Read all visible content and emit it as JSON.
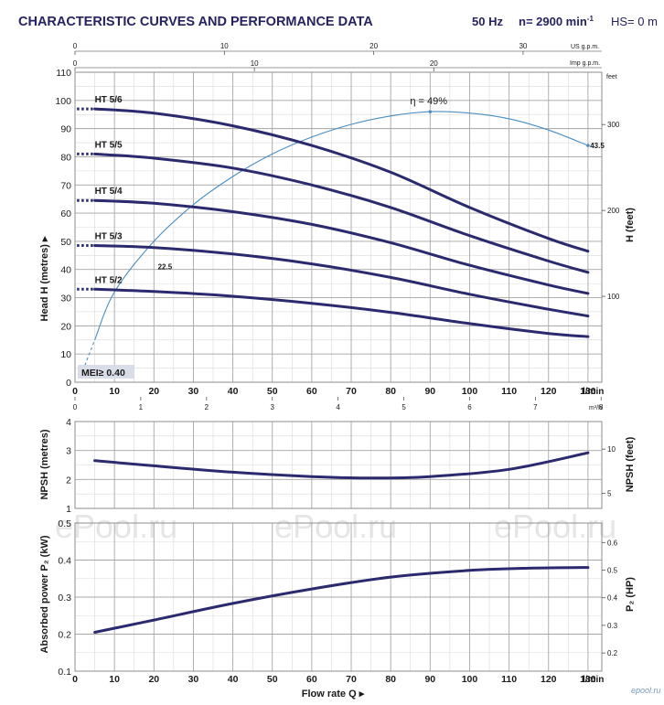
{
  "header": {
    "title": "CHARACTERISTIC CURVES AND PERFORMANCE DATA",
    "hz": "50 Hz",
    "speed_prefix": "n= 2900 min",
    "speed_sup": "-1",
    "hs": "HS= 0 m"
  },
  "watermark": {
    "text": "ePool.ru",
    "corner": "epool.ru"
  },
  "colors": {
    "curve": "#2b2a6e",
    "efficiency": "#4a8ec2",
    "title": "#262261"
  },
  "chart_data": [
    {
      "type": "line",
      "name": "head",
      "ylabel": "Head  H  (metres)",
      "ylabel_right": "H  (feet)",
      "ylim": [
        0,
        110
      ],
      "xlim": [
        0,
        130
      ],
      "x_unit": "l/min",
      "x_ticks": [
        0,
        10,
        20,
        30,
        40,
        50,
        60,
        70,
        80,
        90,
        100,
        110,
        120,
        130
      ],
      "y_ticks": [
        0,
        10,
        20,
        30,
        40,
        50,
        60,
        70,
        80,
        90,
        100,
        110
      ],
      "top_axis_us": {
        "label": "US g.p.m.",
        "ticks": [
          0,
          10,
          20,
          30
        ]
      },
      "top_axis_imp": {
        "label": "Imp g.p.m.",
        "ticks": [
          0,
          10,
          20
        ]
      },
      "bottom_axis_m3h": {
        "label": "m³/h",
        "ticks": [
          0,
          1,
          2,
          3,
          4,
          5,
          6,
          7,
          8
        ]
      },
      "right_axis_feet": {
        "label": "feet",
        "ticks": [
          100,
          200,
          300
        ]
      },
      "series": [
        {
          "name": "HT 5/6",
          "x": [
            5,
            20,
            40,
            60,
            80,
            100,
            120,
            130
          ],
          "y": [
            97,
            95.5,
            91,
            84,
            74.5,
            62,
            51,
            46.5
          ]
        },
        {
          "name": "HT 5/5",
          "x": [
            5,
            20,
            40,
            60,
            80,
            100,
            120,
            130
          ],
          "y": [
            81,
            79.5,
            76,
            70,
            62,
            52,
            43,
            39
          ]
        },
        {
          "name": "HT 5/4",
          "x": [
            5,
            20,
            40,
            60,
            80,
            100,
            120,
            130
          ],
          "y": [
            64.5,
            63.5,
            60.5,
            56,
            49.5,
            41.5,
            34.5,
            31.5
          ]
        },
        {
          "name": "HT 5/3",
          "x": [
            5,
            20,
            40,
            60,
            80,
            100,
            120,
            130
          ],
          "y": [
            48.5,
            47.8,
            45.5,
            42,
            37.2,
            31.2,
            25.9,
            23.5
          ]
        },
        {
          "name": "HT 5/2",
          "x": [
            5,
            20,
            40,
            60,
            80,
            100,
            120,
            130
          ],
          "y": [
            33,
            32.2,
            30.5,
            28,
            24.8,
            20.8,
            17.3,
            16.2
          ]
        }
      ],
      "efficiency": {
        "label": "η = 49%",
        "x": [
          5,
          10,
          20,
          30,
          40,
          50,
          60,
          70,
          80,
          90,
          100,
          110,
          120,
          130
        ],
        "y": [
          15,
          32,
          50,
          63,
          73,
          81,
          87,
          91.5,
          94.5,
          96,
          95.5,
          93.5,
          89.5,
          84
        ]
      },
      "annotations": [
        {
          "text": "22.5",
          "x": 21,
          "y": 40
        },
        {
          "text": "43.5",
          "x": 131,
          "y": 84
        },
        {
          "text": "MEI≥ 0.40"
        }
      ]
    },
    {
      "type": "line",
      "name": "npsh",
      "ylabel": "NPSH  (metres)",
      "ylabel_right": "NPSH  (feet)",
      "ylim": [
        1,
        4
      ],
      "xlim": [
        0,
        130
      ],
      "y_ticks": [
        1,
        2,
        3,
        4
      ],
      "right_ticks": [
        5,
        10
      ],
      "series": [
        {
          "name": "NPSH",
          "x": [
            5,
            20,
            40,
            60,
            75,
            90,
            110,
            130
          ],
          "y": [
            2.65,
            2.47,
            2.25,
            2.1,
            2.05,
            2.1,
            2.35,
            2.92
          ]
        }
      ]
    },
    {
      "type": "line",
      "name": "power",
      "ylabel": "Absorbed power  P₂  (kW)",
      "ylabel_right": "P₂  (HP)",
      "ylim": [
        0.1,
        0.5
      ],
      "xlim": [
        0,
        130
      ],
      "xlabel": "Flow rate  Q",
      "x_unit": "l/min",
      "x_ticks": [
        0,
        10,
        20,
        30,
        40,
        50,
        60,
        70,
        80,
        90,
        100,
        110,
        120,
        130
      ],
      "y_ticks": [
        0.1,
        0.2,
        0.3,
        0.4,
        0.5
      ],
      "right_ticks": [
        0.2,
        0.3,
        0.4,
        0.5,
        0.6
      ],
      "series": [
        {
          "name": "P2",
          "x": [
            5,
            20,
            40,
            60,
            80,
            100,
            115,
            130
          ],
          "y": [
            0.205,
            0.238,
            0.283,
            0.322,
            0.354,
            0.372,
            0.378,
            0.38
          ]
        }
      ]
    }
  ]
}
